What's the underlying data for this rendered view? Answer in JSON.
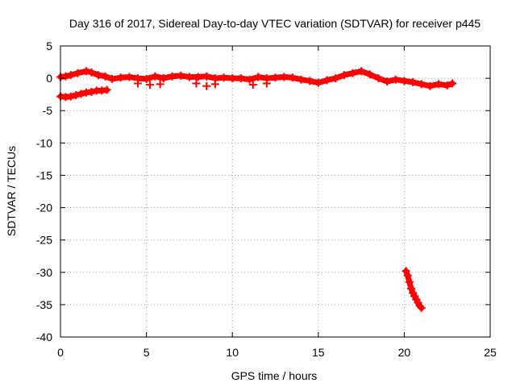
{
  "chart_data": {
    "type": "scatter",
    "title": "Day 316 of 2017, Sidereal Day-to-day VTEC variation (SDTVAR) for receiver p445",
    "xlabel": "GPS time / hours",
    "ylabel": "SDTVAR / TECUs",
    "xlim": [
      0,
      25
    ],
    "ylim": [
      -40,
      5
    ],
    "xticks": [
      0,
      5,
      10,
      15,
      20,
      25
    ],
    "yticks": [
      5,
      0,
      -5,
      -10,
      -15,
      -20,
      -25,
      -30,
      -35,
      -40
    ],
    "grid": true,
    "legend": "none",
    "series_color": "#ff0000",
    "series": [
      {
        "name": "main",
        "x": [
          0.0,
          0.3,
          0.6,
          1.0,
          1.5,
          1.8,
          2.2,
          2.6,
          3.0,
          3.5,
          4.0,
          4.5,
          5.0,
          5.5,
          6.0,
          6.5,
          7.0,
          7.5,
          8.0,
          8.5,
          9.0,
          9.5,
          10.0,
          10.5,
          11.0,
          11.5,
          12.0,
          12.5,
          13.0,
          13.5,
          14.0,
          14.5,
          15.0,
          15.5,
          16.0,
          16.5,
          17.0,
          17.5,
          18.0,
          18.5,
          19.0,
          19.5,
          20.0,
          20.5,
          21.0,
          21.5,
          22.0,
          22.5,
          22.8
        ],
        "y": [
          0.2,
          0.3,
          0.5,
          0.8,
          1.1,
          0.9,
          0.5,
          0.3,
          -0.1,
          0.1,
          0.2,
          0.0,
          -0.1,
          0.3,
          0.0,
          0.3,
          0.4,
          0.2,
          0.2,
          0.3,
          0.0,
          0.1,
          0.0,
          0.0,
          -0.2,
          0.2,
          0.0,
          0.1,
          0.2,
          0.1,
          -0.2,
          -0.4,
          -0.7,
          -0.3,
          0.0,
          0.5,
          0.8,
          1.1,
          0.6,
          0.0,
          -0.5,
          -0.2,
          -0.4,
          -0.6,
          -0.9,
          -1.2,
          -0.9,
          -1.1,
          -0.8
        ]
      },
      {
        "name": "lower-left",
        "x": [
          0.0,
          0.3,
          0.6,
          0.9,
          1.2,
          1.5,
          1.8,
          2.1,
          2.4,
          2.7
        ],
        "y": [
          -2.8,
          -2.9,
          -2.8,
          -2.6,
          -2.4,
          -2.2,
          -2.1,
          -1.9,
          -1.9,
          -1.8
        ]
      },
      {
        "name": "dropout",
        "x": [
          20.1,
          20.2,
          20.3,
          20.4,
          20.5,
          20.6,
          20.7,
          20.8,
          20.9,
          21.0
        ],
        "y": [
          -29.8,
          -30.5,
          -31.5,
          -32.5,
          -33.2,
          -33.7,
          -34.2,
          -34.7,
          -35.2,
          -35.5
        ]
      },
      {
        "name": "spikes",
        "x": [
          4.5,
          5.2,
          5.8,
          7.9,
          8.5,
          9.0,
          11.2,
          12.0
        ],
        "y": [
          -0.8,
          -1.0,
          -0.9,
          -0.8,
          -1.2,
          -0.9,
          -1.0,
          -0.8
        ]
      }
    ]
  }
}
